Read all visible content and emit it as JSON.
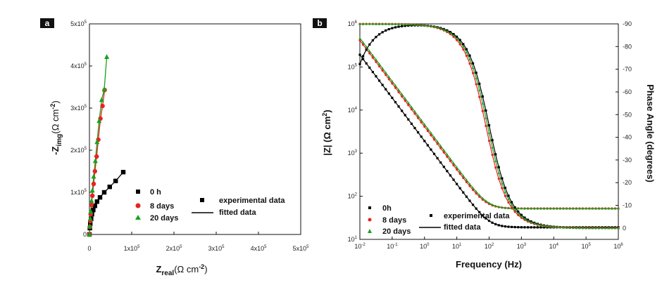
{
  "chart_data": [
    {
      "panel": "a",
      "type": "scatter",
      "title": "",
      "xlabel": "Z_real(Ω cm^-2)",
      "ylabel": "-Z_img(Ω cm^-2)",
      "xlim": [
        0,
        500000
      ],
      "ylim": [
        0,
        500000
      ],
      "x_ticks": [
        "0",
        "1x10^5",
        "2x10^5",
        "3x10^5",
        "4x10^5",
        "5x10^5"
      ],
      "y_ticks": [
        "0",
        "1x10^5",
        "2x10^5",
        "3x10^5",
        "4x10^5",
        "5x10^5"
      ],
      "series": [
        {
          "name": "0 h",
          "color": "#000000",
          "marker": "square",
          "x": [
            0,
            1000,
            2000,
            4000,
            6000,
            9000,
            13000,
            18000,
            25000,
            35000,
            48000,
            62000,
            80000
          ],
          "y": [
            0,
            15000,
            26000,
            37000,
            48000,
            58000,
            68000,
            78000,
            88000,
            100000,
            113000,
            127000,
            148000
          ]
        },
        {
          "name": "8 days",
          "color": "#e8231f",
          "marker": "circle",
          "x": [
            0,
            1000,
            2000,
            3000,
            5000,
            7000,
            10000,
            13000,
            17000,
            21000,
            26000,
            31000,
            36000
          ],
          "y": [
            0,
            18000,
            32000,
            48000,
            70000,
            92000,
            120000,
            150000,
            185000,
            225000,
            275000,
            305000,
            343000
          ]
        },
        {
          "name": "20 days",
          "color": "#18a21e",
          "marker": "triangle",
          "x": [
            0,
            1000,
            2000,
            3000,
            5000,
            7000,
            10000,
            14000,
            18000,
            23000,
            29000,
            35000,
            41000
          ],
          "y": [
            0,
            20000,
            38000,
            55000,
            80000,
            105000,
            138000,
            175000,
            220000,
            270000,
            320000,
            345000,
            422000
          ]
        }
      ],
      "legend": [
        "0 h",
        "8 days",
        "20 days",
        "experimental data",
        "fitted data"
      ],
      "legend_placement": "bottom-left"
    },
    {
      "panel": "b",
      "type": "scatter",
      "title": "",
      "xlabel": "Frequency (Hz)",
      "ylabel": "|Z| (Ω cm^2)",
      "y2label": "Phase Angle (degrees)",
      "x_scale": "log",
      "y_scale": "log",
      "xlim": [
        0.01,
        1000000
      ],
      "ylim": [
        10,
        1000000
      ],
      "y2lim": [
        5,
        -90
      ],
      "x_ticks": [
        "10^-2",
        "10^-1",
        "10^0",
        "10^1",
        "10^2",
        "10^3",
        "10^4",
        "10^5",
        "10^6"
      ],
      "y_ticks": [
        "10^1",
        "10^2",
        "10^3",
        "10^4",
        "10^5",
        "10^6"
      ],
      "y2_ticks": [
        "0",
        "-10",
        "-20",
        "-30",
        "-40",
        "-50",
        "-60",
        "-70",
        "-80",
        "-90"
      ],
      "series": [
        {
          "name": "0h",
          "color": "#000000",
          "kind": "|Z|",
          "R_solution": 19,
          "C": 8.3e-05,
          "R_ct": 1000000000
        },
        {
          "name": "8 days",
          "color": "#e8231f",
          "kind": "|Z|",
          "R_solution": 52,
          "C": 3.85e-05,
          "R_ct": 1000000000
        },
        {
          "name": "20 days",
          "color": "#18a21e",
          "kind": "|Z|",
          "R_solution": 52,
          "C": 3.4e-05,
          "R_ct": 1000000000
        },
        {
          "name": "0h",
          "color": "#000000",
          "kind": "phase",
          "R_solution": 19,
          "C": 8.3e-05,
          "R_ct": 600000
        },
        {
          "name": "8 days",
          "color": "#e8231f",
          "kind": "phase",
          "R_solution": 52,
          "C": 3.85e-05,
          "R_ct": 1000000000
        },
        {
          "name": "20 days",
          "color": "#18a21e",
          "kind": "phase",
          "R_solution": 52,
          "C": 3.4e-05,
          "R_ct": 1000000000
        }
      ],
      "legend": [
        "0h",
        "8 days",
        "20 days",
        "experimental data",
        "fitted data"
      ],
      "legend_placement": "bottom-left"
    }
  ],
  "panel_a": {
    "label": "a",
    "xlabel_main": "Z",
    "xlabel_sub": "real",
    "xlabel_unit": "(Ω cm",
    "xlabel_sup": "-2",
    "xlabel_close": ")",
    "ylabel_main": "-Z",
    "ylabel_sub": "img",
    "ylabel_unit": "(Ω cm",
    "ylabel_sup": "-2",
    "ylabel_close": ")",
    "legend_0h": "0 h",
    "legend_8d": "8 days",
    "legend_20d": "20 days",
    "legend_exp": "experimental data",
    "legend_fit": "fitted data"
  },
  "panel_b": {
    "label": "b",
    "xlabel": "Frequency (Hz)",
    "ylabel_main": "|Z| (Ω cm",
    "ylabel_sup": "2",
    "ylabel_close": ")",
    "y2label": "Phase Angle (degrees)",
    "legend_0h": "0h",
    "legend_8d": "8 days",
    "legend_20d": "20 days",
    "legend_exp": "experimental data",
    "legend_fit": "fitted data"
  }
}
